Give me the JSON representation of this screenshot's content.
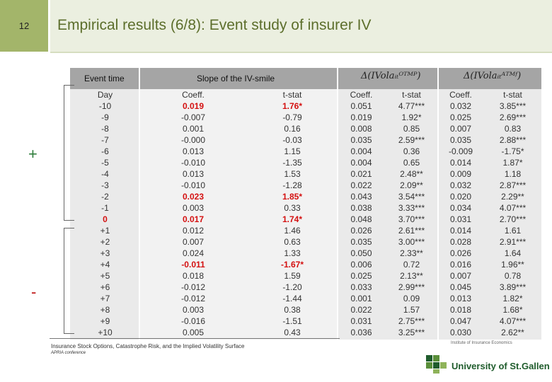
{
  "header": {
    "page_number": "12",
    "title": "Empirical results (6/8): Event study of insurer IV"
  },
  "table": {
    "header_event_time": "Event time",
    "header_slope": "Slope of the IV-smile",
    "header_otmp": "Δ(IVolaᵢₜᴼᵀᴹᴾ)",
    "header_atmf": "Δ(IVolaᵢₜᴬᵀᴹᶠ)",
    "col_day": "Day",
    "col_coeff": "Coeff.",
    "col_tstat": "t-stat",
    "rows": [
      {
        "day": "-10",
        "c1": "0.019",
        "t1": "1.76*",
        "c2": "0.051",
        "t2": "4.77***",
        "c3": "0.032",
        "t3": "3.85***"
      },
      {
        "day": "-9",
        "c1": "-0.007",
        "t1": "-0.79",
        "c2": "0.019",
        "t2": "1.92*",
        "c3": "0.025",
        "t3": "2.69***"
      },
      {
        "day": "-8",
        "c1": "0.001",
        "t1": "0.16",
        "c2": "0.008",
        "t2": "0.85",
        "c3": "0.007",
        "t3": "0.83"
      },
      {
        "day": "-7",
        "c1": "-0.000",
        "t1": "-0.03",
        "c2": "0.035",
        "t2": "2.59***",
        "c3": "0.035",
        "t3": "2.88***"
      },
      {
        "day": "-6",
        "c1": "0.013",
        "t1": "1.15",
        "c2": "0.004",
        "t2": "0.36",
        "c3": "-0.009",
        "t3": "-1.75*"
      },
      {
        "day": "-5",
        "c1": "-0.010",
        "t1": "-1.35",
        "c2": "0.004",
        "t2": "0.65",
        "c3": "0.014",
        "t3": "1.87*"
      },
      {
        "day": "-4",
        "c1": "0.013",
        "t1": "1.53",
        "c2": "0.021",
        "t2": "2.48**",
        "c3": "0.009",
        "t3": "1.18"
      },
      {
        "day": "-3",
        "c1": "-0.010",
        "t1": "-1.28",
        "c2": "0.022",
        "t2": "2.09**",
        "c3": "0.032",
        "t3": "2.87***"
      },
      {
        "day": "-2",
        "c1": "0.023",
        "t1": "1.85*",
        "c2": "0.043",
        "t2": "3.54***",
        "c3": "0.020",
        "t3": "2.29**"
      },
      {
        "day": "-1",
        "c1": "0.003",
        "t1": "0.33",
        "c2": "0.038",
        "t2": "3.33***",
        "c3": "0.034",
        "t3": "4.07***"
      },
      {
        "day": "0",
        "c1": "0.017",
        "t1": "1.74*",
        "c2": "0.048",
        "t2": "3.70***",
        "c3": "0.031",
        "t3": "2.70***"
      },
      {
        "day": "+1",
        "c1": "0.012",
        "t1": "1.46",
        "c2": "0.026",
        "t2": "2.61***",
        "c3": "0.014",
        "t3": "1.61"
      },
      {
        "day": "+2",
        "c1": "0.007",
        "t1": "0.63",
        "c2": "0.035",
        "t2": "3.00***",
        "c3": "0.028",
        "t3": "2.91***"
      },
      {
        "day": "+3",
        "c1": "0.024",
        "t1": "1.33",
        "c2": "0.050",
        "t2": "2.33**",
        "c3": "0.026",
        "t3": "1.64"
      },
      {
        "day": "+4",
        "c1": "-0.011",
        "t1": "-1.67*",
        "c2": "0.006",
        "t2": "0.72",
        "c3": "0.016",
        "t3": "1.96**"
      },
      {
        "day": "+5",
        "c1": "0.018",
        "t1": "1.59",
        "c2": "0.025",
        "t2": "2.13**",
        "c3": "0.007",
        "t3": "0.78"
      },
      {
        "day": "+6",
        "c1": "-0.012",
        "t1": "-1.20",
        "c2": "0.033",
        "t2": "2.99***",
        "c3": "0.045",
        "t3": "3.89***"
      },
      {
        "day": "+7",
        "c1": "-0.012",
        "t1": "-1.44",
        "c2": "0.001",
        "t2": "0.09",
        "c3": "0.013",
        "t3": "1.82*"
      },
      {
        "day": "+8",
        "c1": "0.003",
        "t1": "0.38",
        "c2": "0.022",
        "t2": "1.57",
        "c3": "0.018",
        "t3": "1.68*"
      },
      {
        "day": "+9",
        "c1": "-0.016",
        "t1": "-1.51",
        "c2": "0.031",
        "t2": "2.75***",
        "c3": "0.047",
        "t3": "4.07***"
      },
      {
        "day": "+10",
        "c1": "0.005",
        "t1": "0.43",
        "c2": "0.036",
        "t2": "3.25***",
        "c3": "0.030",
        "t3": "2.62**"
      }
    ]
  },
  "annotations": {
    "plus_sign": "+",
    "minus_sign": "-"
  },
  "footer": {
    "citation": "Insurance Stock Options, Catastrophe Risk, and the Implied Volatility Surface",
    "conference": "APRIA conference",
    "institute": "Institute of Insurance Economics",
    "university": "University of St.Gallen"
  },
  "colors": {
    "accent_green": "#a3b56a",
    "title_green": "#5c6e2b",
    "highlight_red": "#d41010",
    "header_gray": "#a5a5a5"
  }
}
